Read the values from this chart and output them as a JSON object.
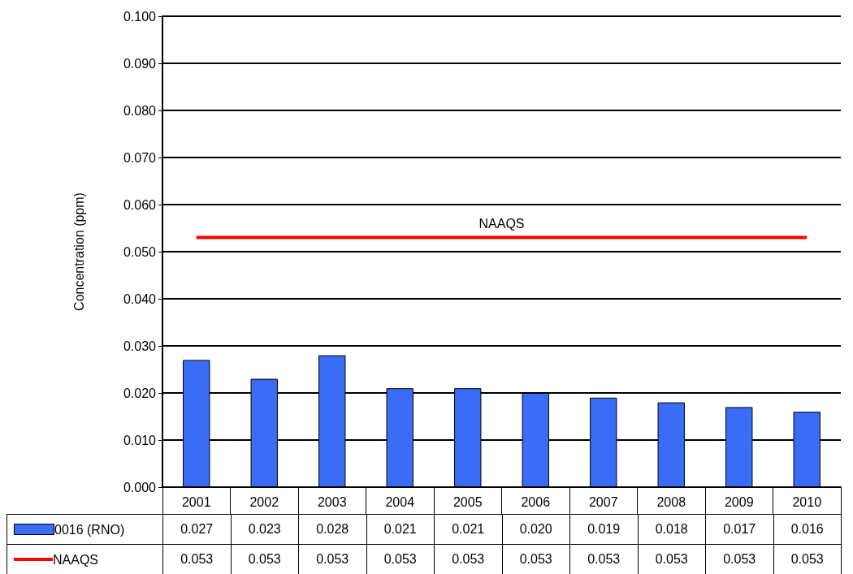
{
  "chart_data": {
    "type": "bar",
    "ylabel": "Concentration (ppm)",
    "categories": [
      "2001",
      "2002",
      "2003",
      "2004",
      "2005",
      "2006",
      "2007",
      "2008",
      "2009",
      "2010"
    ],
    "series": [
      {
        "name": "0016 (RNO)",
        "color": "#3b6cf5",
        "values": [
          0.027,
          0.023,
          0.028,
          0.021,
          0.021,
          0.02,
          0.019,
          0.018,
          0.017,
          0.016
        ],
        "value_labels": [
          "0.027",
          "0.023",
          "0.028",
          "0.021",
          "0.021",
          "0.020",
          "0.019",
          "0.018",
          "0.017",
          "0.016"
        ]
      },
      {
        "name": "NAAQS",
        "type": "line",
        "color": "#ff0000",
        "values": [
          0.053,
          0.053,
          0.053,
          0.053,
          0.053,
          0.053,
          0.053,
          0.053,
          0.053,
          0.053
        ],
        "value_labels": [
          "0.053",
          "0.053",
          "0.053",
          "0.053",
          "0.053",
          "0.053",
          "0.053",
          "0.053",
          "0.053",
          "0.053"
        ]
      }
    ],
    "ylim": [
      0,
      0.1
    ],
    "yticks": [
      {
        "value": 0,
        "label": "0.000"
      },
      {
        "value": 0.01,
        "label": "0.010"
      },
      {
        "value": 0.02,
        "label": "0.020"
      },
      {
        "value": 0.03,
        "label": "0.030"
      },
      {
        "value": 0.04,
        "label": "0.040"
      },
      {
        "value": 0.05,
        "label": "0.050"
      },
      {
        "value": 0.06,
        "label": "0.060"
      },
      {
        "value": 0.07,
        "label": "0.070"
      },
      {
        "value": 0.08,
        "label": "0.080"
      },
      {
        "value": 0.09,
        "label": "0.090"
      },
      {
        "value": 0.1,
        "label": "0.100"
      }
    ],
    "grid": "y",
    "legend": "bottom",
    "marker": "none"
  }
}
